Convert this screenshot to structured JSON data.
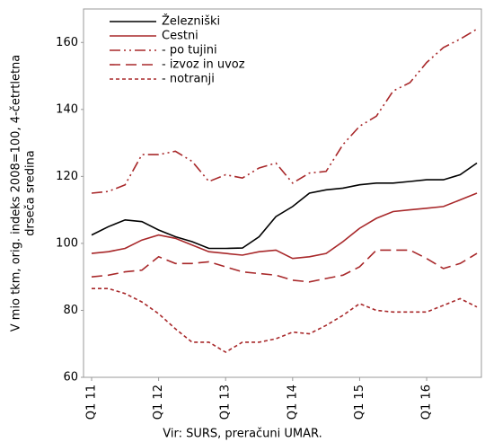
{
  "chart_data": {
    "type": "line",
    "ylabel": [
      "V mio tkm, orig. indeks 2008=100, 4-četrtletna",
      "drseča sredina"
    ],
    "source": "Vir: SURS, preračuni UMAR.",
    "categories": [
      "Q1 11",
      null,
      null,
      null,
      "Q1 12",
      null,
      null,
      null,
      "Q1 13",
      null,
      null,
      null,
      "Q1 14",
      null,
      null,
      null,
      "Q1 15",
      null,
      null,
      null,
      "Q1 16",
      null,
      null,
      null
    ],
    "ylim": [
      60,
      170
    ],
    "yticks": [
      60,
      80,
      100,
      120,
      140,
      160
    ],
    "grid": false,
    "legend": "upper left",
    "series": [
      {
        "name": "Železniški",
        "color": "#000000",
        "dash": "solid",
        "values": [
          102.5,
          105,
          107,
          106.5,
          104,
          102,
          100.5,
          98.5,
          98.5,
          98.6,
          102,
          108,
          111,
          115,
          116,
          116.5,
          117.5,
          118,
          118,
          118.5,
          119,
          119,
          120.5,
          124
        ]
      },
      {
        "name": "Cestni",
        "color": "#a8282a",
        "dash": "solid",
        "values": [
          97,
          97.5,
          98.5,
          101,
          102.5,
          101.5,
          99.5,
          97.5,
          97,
          96.5,
          97.5,
          98,
          95.5,
          96,
          97,
          100.5,
          104.5,
          107.5,
          109.5,
          110,
          110.5,
          111,
          113,
          115
        ]
      },
      {
        "name": "- po tujini",
        "color": "#a8282a",
        "dash": "dashdotdot",
        "values": [
          115,
          115.5,
          117.5,
          126.5,
          126.5,
          127.5,
          124.5,
          118.5,
          120.5,
          119.5,
          122.5,
          124,
          118,
          121,
          121.5,
          129.5,
          135,
          138,
          145.5,
          148,
          154,
          158.5,
          161,
          164
        ]
      },
      {
        "name": "- izvoz in uvoz",
        "color": "#a8282a",
        "dash": "longdash",
        "values": [
          90,
          90.5,
          91.5,
          92,
          96,
          94,
          94,
          94.5,
          93,
          91.5,
          91,
          90.5,
          89,
          88.5,
          89.5,
          90.5,
          93,
          98,
          98,
          98,
          95.5,
          92.5,
          94,
          97
        ]
      },
      {
        "name": "- notranji",
        "color": "#a8282a",
        "dash": "shortdash",
        "values": [
          86.5,
          86.5,
          85,
          82.5,
          79,
          74.5,
          70.5,
          70.5,
          67.5,
          70.5,
          70.5,
          71.5,
          73.5,
          73,
          75.5,
          78.5,
          82,
          80,
          79.5,
          79.5,
          79.5,
          81.5,
          83.5,
          81
        ]
      }
    ]
  }
}
